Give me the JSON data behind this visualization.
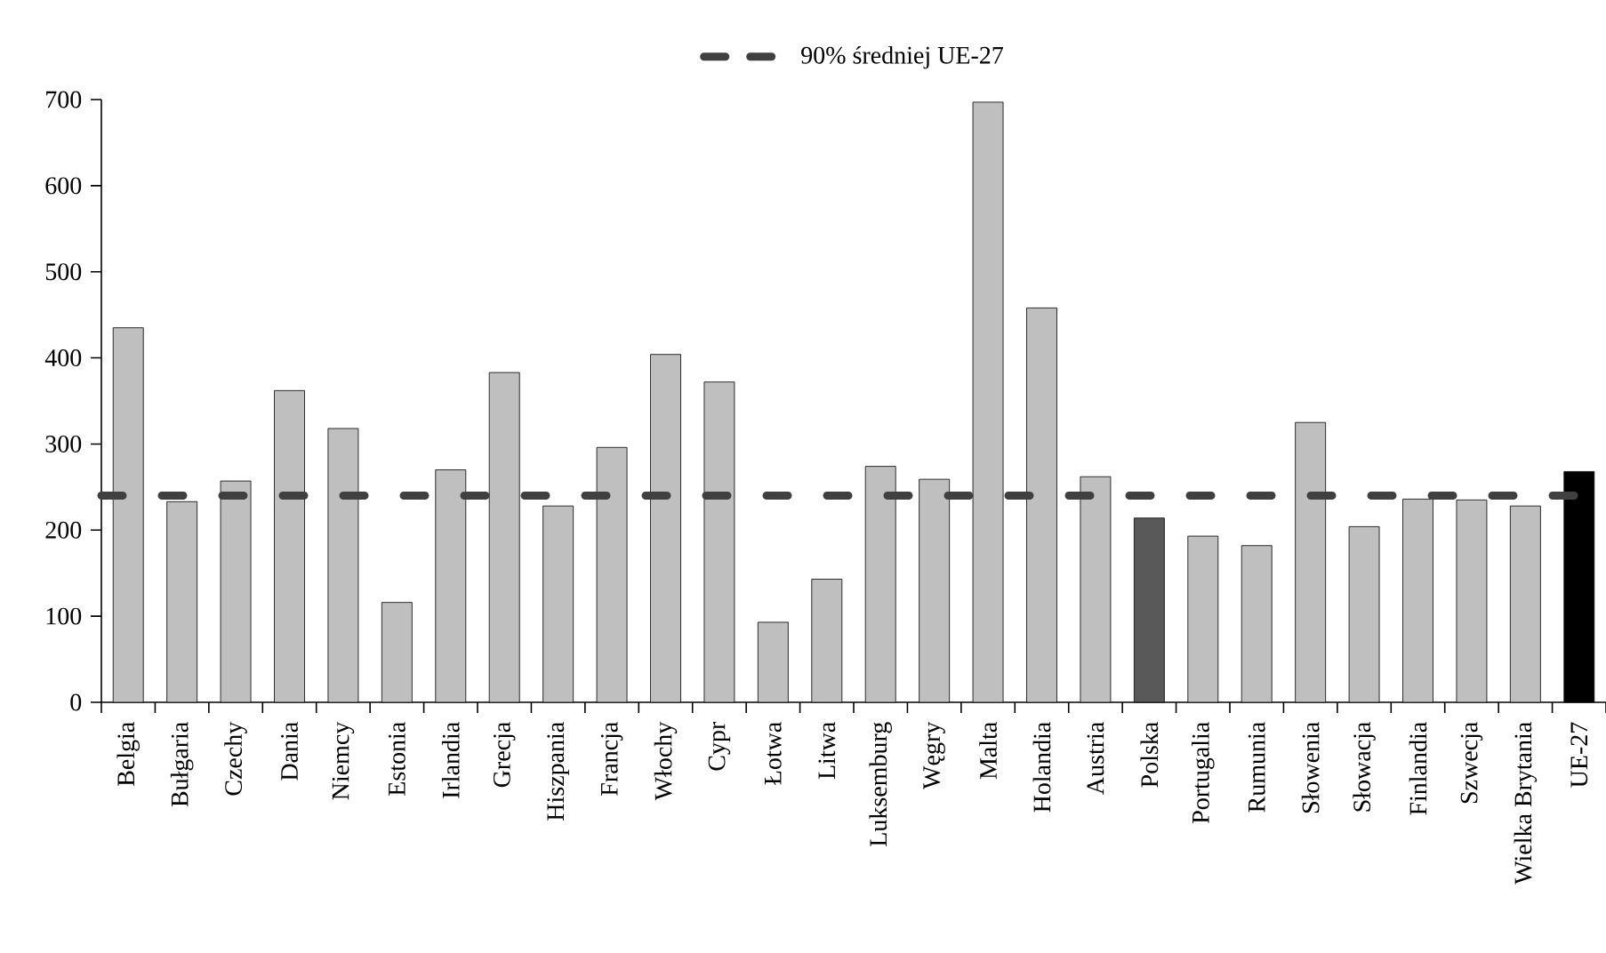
{
  "chart_data": {
    "type": "bar",
    "categories": [
      "Belgia",
      "Bułgaria",
      "Czechy",
      "Dania",
      "Niemcy",
      "Estonia",
      "Irlandia",
      "Grecja",
      "Hiszpania",
      "Francja",
      "Włochy",
      "Cypr",
      "Łotwa",
      "Litwa",
      "Luksemburg",
      "Węgry",
      "Malta",
      "Holandia",
      "Austria",
      "Polska",
      "Portugalia",
      "Rumunia",
      "Słowenia",
      "Słowacja",
      "Finlandia",
      "Szwecja",
      "Wielka Brytania",
      "UE-27"
    ],
    "values": [
      435,
      233,
      257,
      362,
      318,
      116,
      270,
      383,
      228,
      296,
      404,
      372,
      93,
      143,
      274,
      259,
      697,
      458,
      262,
      214,
      193,
      182,
      325,
      204,
      236,
      235,
      228,
      268
    ],
    "colors": [
      "#bfbfbf",
      "#bfbfbf",
      "#bfbfbf",
      "#bfbfbf",
      "#bfbfbf",
      "#bfbfbf",
      "#bfbfbf",
      "#bfbfbf",
      "#bfbfbf",
      "#bfbfbf",
      "#bfbfbf",
      "#bfbfbf",
      "#bfbfbf",
      "#bfbfbf",
      "#bfbfbf",
      "#bfbfbf",
      "#bfbfbf",
      "#bfbfbf",
      "#bfbfbf",
      "#595959",
      "#bfbfbf",
      "#bfbfbf",
      "#bfbfbf",
      "#bfbfbf",
      "#bfbfbf",
      "#bfbfbf",
      "#bfbfbf",
      "#000000"
    ],
    "ylim": [
      0,
      700
    ],
    "yticks": [
      0,
      100,
      200,
      300,
      400,
      500,
      600,
      700
    ],
    "ref_lines": [
      {
        "axis": "y",
        "value": 240,
        "label": "90% średniej UE-27",
        "color": "#404040",
        "line_style": "dashed"
      }
    ],
    "legend": "top"
  }
}
